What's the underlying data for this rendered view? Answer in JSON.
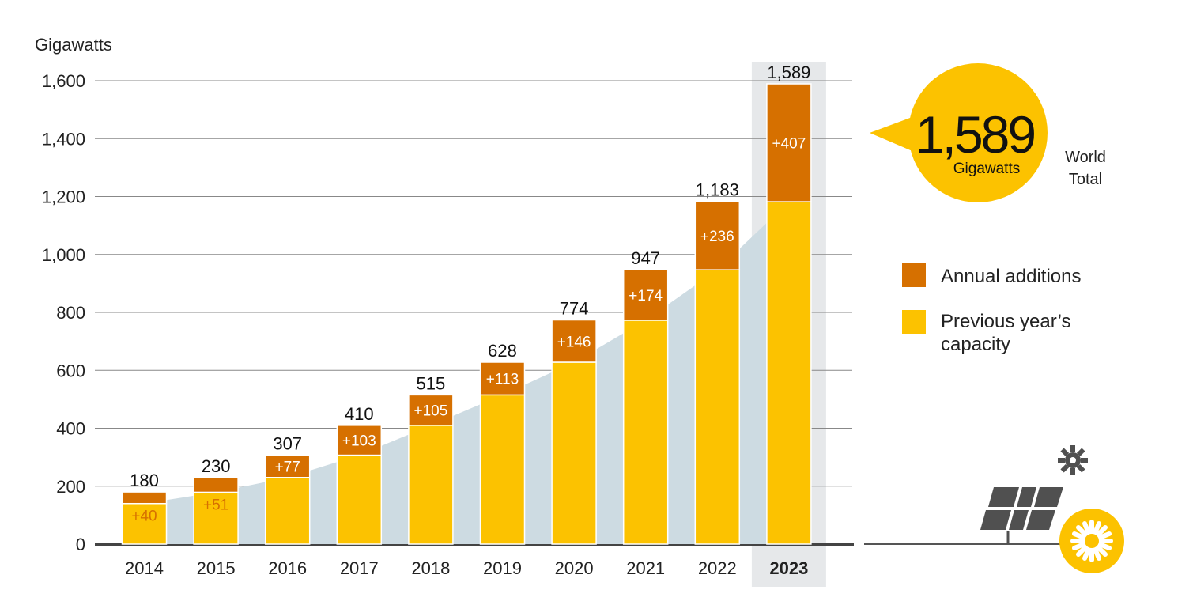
{
  "chart_data": {
    "type": "bar",
    "ylabel": "Gigawatts",
    "ylim": [
      0,
      1600
    ],
    "yticks": [
      "0",
      "200",
      "400",
      "600",
      "800",
      "1,000",
      "1,200",
      "1,400",
      "1,600"
    ],
    "categories": [
      "2014",
      "2015",
      "2016",
      "2017",
      "2018",
      "2019",
      "2020",
      "2021",
      "2022",
      "2023"
    ],
    "highlight_category": "2023",
    "totals": [
      180,
      230,
      307,
      410,
      515,
      628,
      774,
      947,
      1183,
      1589
    ],
    "total_labels": [
      "180",
      "230",
      "307",
      "410",
      "515",
      "628",
      "774",
      "947",
      "1,183",
      "1,589"
    ],
    "series": [
      {
        "name": "Previous year’s capacity",
        "values": [
          140,
          179,
          230,
          307,
          410,
          515,
          628,
          773,
          947,
          1182
        ]
      },
      {
        "name": "Annual additions",
        "values": [
          40,
          51,
          77,
          103,
          105,
          113,
          146,
          174,
          236,
          407
        ],
        "labels": [
          "+40",
          "+51",
          "+77",
          "+103",
          "+105",
          "+113",
          "+146",
          "+174",
          "+236",
          "+407"
        ]
      }
    ],
    "grid": true,
    "legend_position": "right"
  },
  "callout": {
    "value": "1,589",
    "unit": "Gigawatts",
    "note_line1": "World",
    "note_line2": "Total"
  },
  "legend": {
    "additions": "Annual additions",
    "previous_line1": "Previous year’s",
    "previous_line2": "capacity"
  },
  "colors": {
    "additions": "#D67000",
    "previous": "#FCC200",
    "area": "#CDDBE2",
    "grid": "#888888",
    "axis": "#444444",
    "highlight": "#E6E8EA",
    "icon_gray": "#505050"
  },
  "icons": [
    "solar-panel-icon",
    "sun-icon",
    "gear-sun-icon"
  ]
}
